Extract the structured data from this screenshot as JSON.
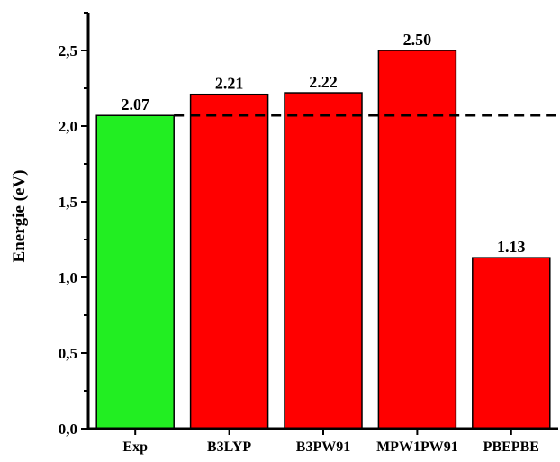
{
  "chart_data": {
    "type": "bar",
    "title": "",
    "xlabel": "",
    "ylabel": "Energie (eV)",
    "categories": [
      "Exp",
      "B3LYP",
      "B3PW91",
      "MPW1PW91",
      "PBEPBE"
    ],
    "values": [
      2.07,
      2.21,
      2.22,
      2.5,
      1.13
    ],
    "value_labels": [
      "2.07",
      "2.21",
      "2.22",
      "2.50",
      "1.13"
    ],
    "bar_colors": [
      "#22ee22",
      "#ff0000",
      "#ff0000",
      "#ff0000",
      "#ff0000"
    ],
    "ylim": [
      0,
      2.75
    ],
    "yticks": [
      0,
      0.5,
      1.0,
      1.5,
      2.0,
      2.5
    ],
    "ytick_labels": [
      "0,0",
      "0,5",
      "1,0",
      "1,5",
      "2,0",
      "2,5"
    ],
    "reference_line": {
      "value": 2.07,
      "style": "dashed",
      "color": "#000000"
    },
    "grid": false,
    "legend": "none"
  }
}
